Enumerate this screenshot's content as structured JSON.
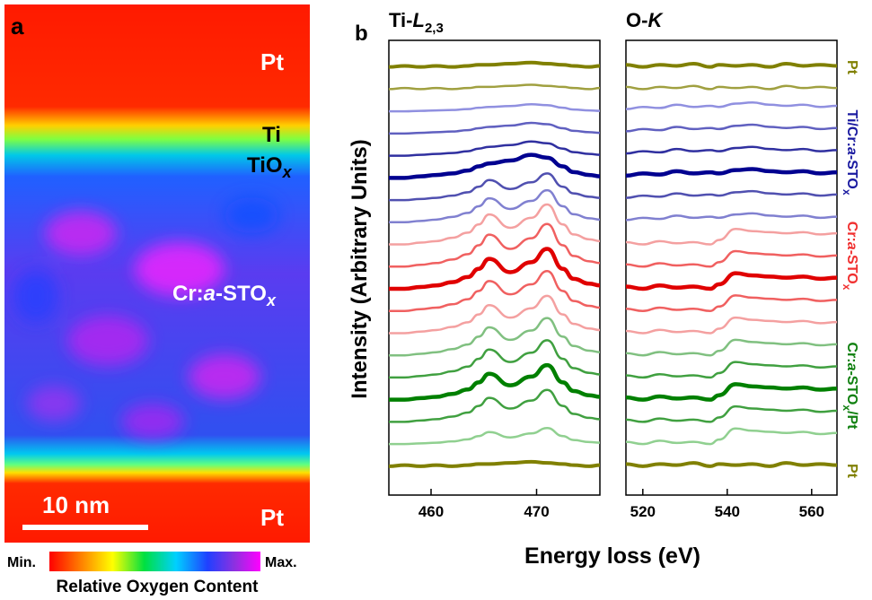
{
  "panel_a": {
    "label": "a",
    "pt_top": "Pt",
    "ti": "Ti",
    "tiox": [
      "TiO",
      "x"
    ],
    "sto": [
      "Cr:",
      "a",
      "-STO",
      "x"
    ],
    "scale_bar": "10 nm",
    "pt_bottom": "Pt",
    "colorbar_min": "Min.",
    "colorbar_max": "Max.",
    "colorbar_title": "Relative Oxygen Content"
  },
  "panel_b": {
    "label": "b",
    "y_label": "Intensity (Arbitrary Units)",
    "x_label": "Energy loss (eV)",
    "group_labels": [
      {
        "parts": [
          "Pt"
        ],
        "color": "#808000"
      },
      {
        "parts": [
          "Ti/Cr:",
          "a",
          "-STO",
          "x"
        ],
        "color": "#1a1aa0"
      },
      {
        "parts": [
          "Cr:",
          "a",
          "-STO",
          "x"
        ],
        "color": "#f03030"
      },
      {
        "parts": [
          "Cr:",
          "a",
          "-STO",
          "x",
          "/Pt"
        ],
        "color": "#108010"
      },
      {
        "parts": [
          "Pt"
        ],
        "color": "#808000"
      }
    ]
  },
  "chart_data": [
    {
      "type": "line",
      "title": [
        "Ti-",
        "L",
        "2,3"
      ],
      "xlim": [
        456,
        476
      ],
      "xticks": [
        460,
        470
      ],
      "ylim": [
        -1.3,
        19.2
      ],
      "x": [
        456,
        457.5,
        459,
        460.5,
        462,
        463.5,
        464.5,
        465.5,
        467.5,
        469.5,
        471,
        472.5,
        473.5,
        475,
        476
      ],
      "series": [
        {
          "color": "#808000",
          "linewidth": 4,
          "values": [
            18,
            18.05,
            18,
            18.05,
            18,
            18.05,
            18.1,
            18.1,
            18.15,
            18.2,
            18.15,
            18.1,
            18.05,
            18,
            18.05
          ]
        },
        {
          "color": "#a0a040",
          "linewidth": 2.5,
          "values": [
            17,
            17.05,
            17,
            17.05,
            17,
            17.05,
            17.1,
            17.1,
            17.15,
            17.2,
            17.15,
            17.1,
            17.05,
            17,
            17.05
          ]
        },
        {
          "color": "#9090e0",
          "linewidth": 2.5,
          "values": [
            16,
            16,
            16.02,
            16.04,
            16.06,
            16.1,
            16.16,
            16.2,
            16.24,
            16.32,
            16.28,
            16.16,
            16.08,
            16.04,
            16.02
          ]
        },
        {
          "color": "#6060c0",
          "linewidth": 2.5,
          "values": [
            15,
            15,
            15.03,
            15.06,
            15.09,
            15.15,
            15.24,
            15.3,
            15.36,
            15.48,
            15.42,
            15.24,
            15.12,
            15.06,
            15.03
          ]
        },
        {
          "color": "#3030a0",
          "linewidth": 2.5,
          "values": [
            14,
            14,
            14.04,
            14.08,
            14.12,
            14.2,
            14.32,
            14.4,
            14.48,
            14.64,
            14.56,
            14.32,
            14.16,
            14.08,
            14.04
          ]
        },
        {
          "color": "#000090",
          "linewidth": 4.5,
          "values": [
            13,
            13,
            13.07,
            13.13,
            13.2,
            13.33,
            13.52,
            13.65,
            13.78,
            14.04,
            13.91,
            13.52,
            13.26,
            13.13,
            13.07
          ]
        },
        {
          "color": "#5050b0",
          "linewidth": 2.5,
          "values": [
            12,
            12,
            12.05,
            12.1,
            12.2,
            12.35,
            12.6,
            12.9,
            12.5,
            12.8,
            13.2,
            12.6,
            12.3,
            12.15,
            12.1
          ]
        },
        {
          "color": "#8080d0",
          "linewidth": 2.5,
          "values": [
            11,
            11,
            11.06,
            11.12,
            11.24,
            11.42,
            11.72,
            12.08,
            11.6,
            11.96,
            12.44,
            11.72,
            11.36,
            11.18,
            11.12
          ]
        },
        {
          "color": "#f4a0a0",
          "linewidth": 2.5,
          "values": [
            10,
            10,
            10.08,
            10.15,
            10.3,
            10.53,
            10.9,
            11.35,
            10.75,
            11.2,
            11.8,
            10.9,
            10.45,
            10.23,
            10.15
          ]
        },
        {
          "color": "#f06060",
          "linewidth": 2.5,
          "values": [
            9,
            9,
            9.08,
            9.16,
            9.32,
            9.56,
            9.96,
            10.44,
            9.8,
            10.28,
            10.92,
            9.96,
            9.48,
            9.24,
            9.16
          ]
        },
        {
          "color": "#e00000",
          "linewidth": 4.5,
          "values": [
            8,
            8,
            8.08,
            8.15,
            8.3,
            8.53,
            8.9,
            9.35,
            8.75,
            9.2,
            9.8,
            8.9,
            8.45,
            8.23,
            8.15
          ]
        },
        {
          "color": "#f06060",
          "linewidth": 2.5,
          "values": [
            7,
            7,
            7.08,
            7.15,
            7.3,
            7.53,
            7.9,
            8.35,
            7.75,
            8.2,
            8.8,
            7.9,
            7.45,
            7.23,
            7.15
          ]
        },
        {
          "color": "#f4a0a0",
          "linewidth": 2.5,
          "values": [
            6,
            6,
            6.07,
            6.14,
            6.28,
            6.49,
            6.84,
            7.26,
            6.7,
            7.12,
            7.68,
            6.84,
            6.42,
            6.21,
            6.14
          ]
        },
        {
          "color": "#80c080",
          "linewidth": 2.5,
          "values": [
            5,
            5,
            5.07,
            5.14,
            5.28,
            5.49,
            5.84,
            6.26,
            5.7,
            6.12,
            6.68,
            5.84,
            5.42,
            5.21,
            5.14
          ]
        },
        {
          "color": "#40a040",
          "linewidth": 2.5,
          "values": [
            4,
            4,
            4.07,
            4.14,
            4.28,
            4.49,
            4.84,
            5.26,
            4.7,
            5.12,
            5.68,
            4.84,
            4.42,
            4.21,
            4.14
          ]
        },
        {
          "color": "#008000",
          "linewidth": 4.5,
          "values": [
            3,
            3,
            3.07,
            3.13,
            3.26,
            3.46,
            3.78,
            4.17,
            3.65,
            4.04,
            4.56,
            3.78,
            3.39,
            3.2,
            3.13
          ]
        },
        {
          "color": "#40a040",
          "linewidth": 2.5,
          "values": [
            2,
            2,
            2.06,
            2.12,
            2.24,
            2.42,
            2.72,
            3.08,
            2.6,
            2.96,
            3.44,
            2.72,
            2.36,
            2.18,
            2.12
          ]
        },
        {
          "color": "#90d090",
          "linewidth": 2.5,
          "values": [
            1,
            1,
            1.03,
            1.06,
            1.12,
            1.21,
            1.36,
            1.54,
            1.3,
            1.48,
            1.72,
            1.36,
            1.18,
            1.09,
            1.06
          ]
        },
        {
          "color": "#808000",
          "linewidth": 4,
          "values": [
            0,
            0.05,
            0,
            0.05,
            0,
            0.05,
            0.1,
            0.1,
            0.15,
            0.2,
            0.15,
            0.1,
            0.05,
            0,
            0.05
          ]
        }
      ]
    },
    {
      "type": "line",
      "title": [
        "O-",
        "K"
      ],
      "xlim": [
        516,
        566
      ],
      "xticks": [
        520,
        540,
        560
      ],
      "ylim": [
        -1.3,
        19.2
      ],
      "x": [
        516,
        520,
        524,
        528,
        532,
        536,
        538,
        542,
        546,
        550,
        554,
        558,
        562,
        566
      ],
      "series": [
        {
          "color": "#808000",
          "linewidth": 4,
          "values": [
            18.1,
            18,
            18.1,
            18.05,
            18.15,
            18,
            18.1,
            18.05,
            18.1,
            18,
            18.15,
            18.05,
            18.1,
            18.05
          ]
        },
        {
          "color": "#a0a040",
          "linewidth": 2.5,
          "values": [
            17.1,
            17,
            17.1,
            17.05,
            17.15,
            17,
            17.1,
            17.05,
            17.1,
            17,
            17.15,
            17.05,
            17.1,
            17.05
          ]
        },
        {
          "color": "#9090e0",
          "linewidth": 2.5,
          "values": [
            16.1,
            16.2,
            16.15,
            16.3,
            16.2,
            16.25,
            16.2,
            16.35,
            16.4,
            16.3,
            16.25,
            16.3,
            16.2,
            16.25
          ]
        },
        {
          "color": "#6060c0",
          "linewidth": 2.5,
          "values": [
            15.1,
            15.2,
            15.15,
            15.3,
            15.2,
            15.25,
            15.2,
            15.35,
            15.4,
            15.3,
            15.25,
            15.3,
            15.2,
            15.25
          ]
        },
        {
          "color": "#3030a0",
          "linewidth": 2.5,
          "values": [
            14.1,
            14.2,
            14.15,
            14.3,
            14.2,
            14.25,
            14.2,
            14.35,
            14.4,
            14.3,
            14.25,
            14.3,
            14.2,
            14.25
          ]
        },
        {
          "color": "#000090",
          "linewidth": 4.5,
          "values": [
            13.1,
            13.2,
            13.15,
            13.3,
            13.2,
            13.25,
            13.2,
            13.35,
            13.4,
            13.3,
            13.25,
            13.3,
            13.2,
            13.25
          ]
        },
        {
          "color": "#5050b0",
          "linewidth": 2.5,
          "values": [
            12.1,
            12.2,
            12.15,
            12.3,
            12.2,
            12.25,
            12.2,
            12.35,
            12.4,
            12.3,
            12.25,
            12.3,
            12.2,
            12.25
          ]
        },
        {
          "color": "#8080d0",
          "linewidth": 2.5,
          "values": [
            11.1,
            11.2,
            11.15,
            11.3,
            11.2,
            11.25,
            11.2,
            11.35,
            11.4,
            11.3,
            11.25,
            11.3,
            11.2,
            11.25
          ]
        },
        {
          "color": "#f4a0a0",
          "linewidth": 2.5,
          "values": [
            10.1,
            10,
            10.15,
            10.05,
            10.1,
            10,
            10.2,
            10.7,
            10.6,
            10.55,
            10.5,
            10.55,
            10.45,
            10.5
          ]
        },
        {
          "color": "#f06060",
          "linewidth": 2.5,
          "values": [
            9.1,
            9,
            9.15,
            9.05,
            9.1,
            9,
            9.2,
            9.7,
            9.6,
            9.55,
            9.5,
            9.55,
            9.45,
            9.5
          ]
        },
        {
          "color": "#e00000",
          "linewidth": 4.5,
          "values": [
            8.1,
            8,
            8.15,
            8.05,
            8.1,
            8,
            8.2,
            8.7,
            8.6,
            8.55,
            8.5,
            8.55,
            8.45,
            8.5
          ]
        },
        {
          "color": "#f06060",
          "linewidth": 2.5,
          "values": [
            7.1,
            7,
            7.15,
            7.05,
            7.1,
            7,
            7.2,
            7.7,
            7.6,
            7.55,
            7.5,
            7.55,
            7.45,
            7.5
          ]
        },
        {
          "color": "#f4a0a0",
          "linewidth": 2.5,
          "values": [
            6.1,
            6,
            6.15,
            6.05,
            6.1,
            6,
            6.2,
            6.7,
            6.6,
            6.55,
            6.5,
            6.55,
            6.45,
            6.5
          ]
        },
        {
          "color": "#80c080",
          "linewidth": 2.5,
          "values": [
            5.1,
            5,
            5.15,
            5.05,
            5.1,
            5,
            5.2,
            5.7,
            5.6,
            5.55,
            5.5,
            5.55,
            5.45,
            5.5
          ]
        },
        {
          "color": "#40a040",
          "linewidth": 2.5,
          "values": [
            4.1,
            4,
            4.15,
            4.05,
            4.1,
            4,
            4.2,
            4.7,
            4.6,
            4.55,
            4.5,
            4.55,
            4.45,
            4.5
          ]
        },
        {
          "color": "#008000",
          "linewidth": 4.5,
          "values": [
            3.1,
            3,
            3.15,
            3.05,
            3.1,
            3,
            3.2,
            3.7,
            3.6,
            3.55,
            3.5,
            3.55,
            3.45,
            3.5
          ]
        },
        {
          "color": "#40a040",
          "linewidth": 2.5,
          "values": [
            2.1,
            2,
            2.15,
            2.05,
            2.1,
            2,
            2.2,
            2.7,
            2.6,
            2.55,
            2.5,
            2.55,
            2.45,
            2.5
          ]
        },
        {
          "color": "#90d090",
          "linewidth": 2.5,
          "values": [
            1.1,
            1,
            1.15,
            1.05,
            1.1,
            1,
            1.2,
            1.7,
            1.6,
            1.55,
            1.5,
            1.55,
            1.45,
            1.5
          ]
        },
        {
          "color": "#808000",
          "linewidth": 4,
          "values": [
            0.1,
            0,
            0.1,
            0.05,
            0.15,
            0,
            0.1,
            0.05,
            0.1,
            0,
            0.15,
            0.05,
            0.1,
            0.05
          ]
        }
      ]
    }
  ]
}
